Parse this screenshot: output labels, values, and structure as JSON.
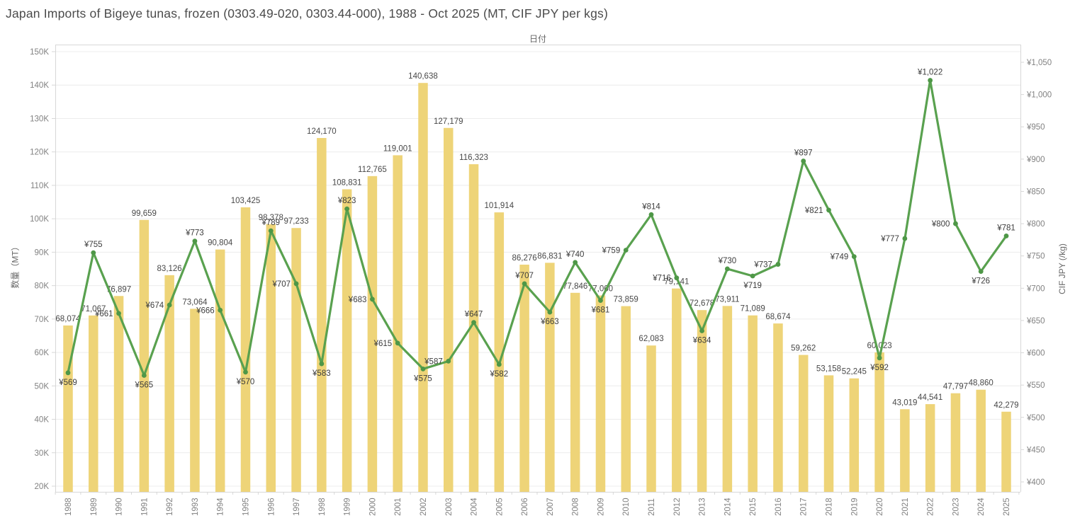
{
  "header": {
    "title": "Japan Imports of Bigeye tunas, frozen (0303.49-020, 0303.44-000), 1988 - Oct 2025 (MT, CIF JPY per kgs)"
  },
  "chart_data": {
    "type": "combo",
    "title": "Japan Imports of Bigeye tunas, frozen (0303.49-020, 0303.44-000), 1988 - Oct 2025 (MT, CIF JPY per kgs)",
    "x_axis": {
      "label": "日付",
      "categories": [
        "1988",
        "1989",
        "1990",
        "1991",
        "1992",
        "1993",
        "1994",
        "1995",
        "1996",
        "1997",
        "1998",
        "1999",
        "2000",
        "2001",
        "2002",
        "2003",
        "2004",
        "2005",
        "2006",
        "2007",
        "2008",
        "2009",
        "2010",
        "2011",
        "2012",
        "2013",
        "2014",
        "2015",
        "2016",
        "2017",
        "2018",
        "2019",
        "2020",
        "2021",
        "2022",
        "2023",
        "2024",
        "2025"
      ]
    },
    "left_axis": {
      "label": "数量（MT）",
      "min": 20000,
      "max": 150000,
      "tick_step": 10000,
      "tick_suffix": "K"
    },
    "right_axis": {
      "label": "CIF JPY (/kg)",
      "min": 400,
      "max": 1050,
      "tick_step": 50,
      "tick_prefix": "¥"
    },
    "grid": true,
    "legend": "none",
    "series": [
      {
        "name": "数量（MT）",
        "type": "bar",
        "axis": "left",
        "color": "#eed478",
        "values": [
          68074,
          71067,
          76897,
          99659,
          83126,
          73064,
          90804,
          103425,
          98378,
          97233,
          124170,
          108831,
          112765,
          119001,
          140638,
          127179,
          116323,
          101914,
          86276,
          86831,
          77846,
          77060,
          73859,
          62083,
          79141,
          72678,
          73911,
          71089,
          68674,
          59262,
          53158,
          52245,
          60023,
          43019,
          44541,
          47797,
          48860,
          42279
        ]
      },
      {
        "name": "CIF JPY (/kg)",
        "type": "line",
        "axis": "right",
        "color": "#59a14f",
        "values": [
          569,
          755,
          661,
          565,
          674,
          773,
          666,
          570,
          789,
          707,
          583,
          823,
          683,
          615,
          575,
          587,
          647,
          582,
          707,
          663,
          740,
          681,
          759,
          814,
          716,
          634,
          730,
          719,
          737,
          897,
          821,
          749,
          592,
          777,
          1022,
          800,
          726,
          781
        ]
      }
    ],
    "colors": {
      "bar": "#eed478",
      "line": "#59a14f",
      "grid": "#ececec",
      "axis_border": "#d7d7d7",
      "tick_label": "#828282",
      "data_label": "#484848",
      "price_label": "#3c3c3c"
    }
  }
}
